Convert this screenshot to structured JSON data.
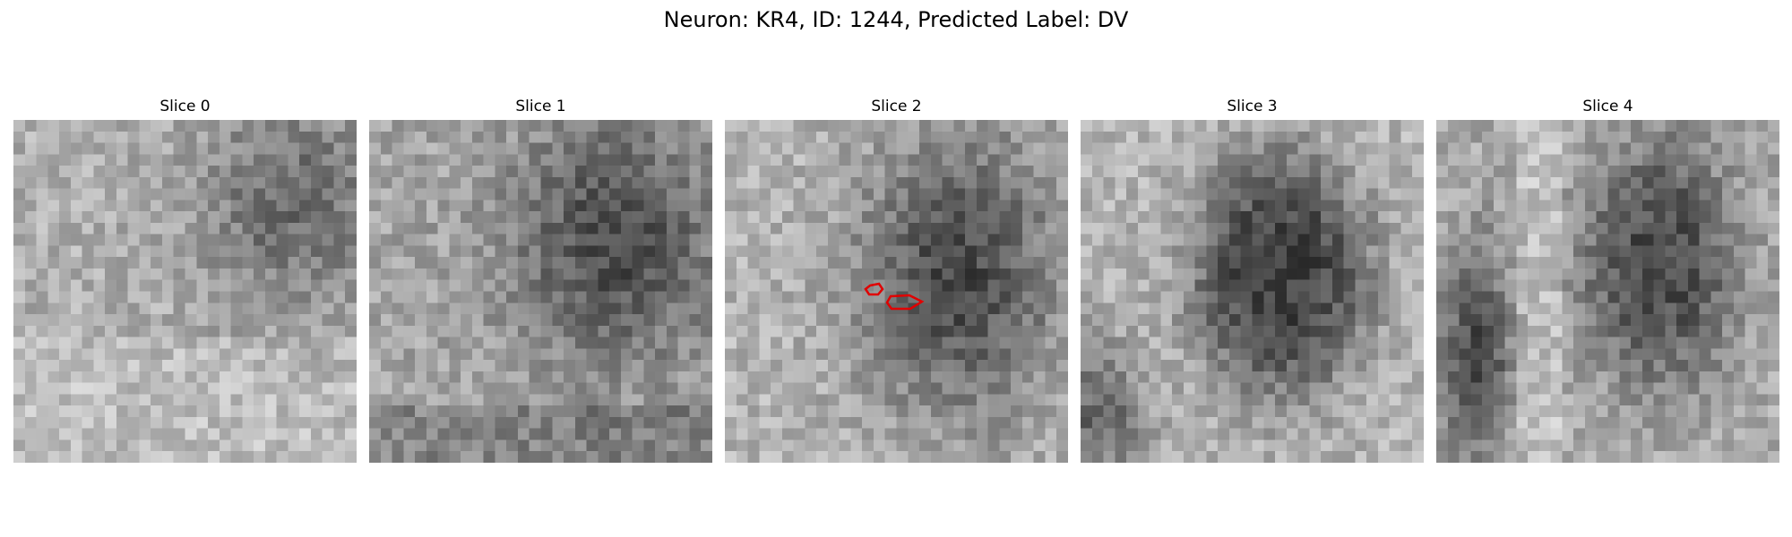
{
  "figure": {
    "title": "Neuron: KR4, ID: 1244, Predicted Label: DV"
  },
  "panels": [
    {
      "title": "Slice 0"
    },
    {
      "title": "Slice 1"
    },
    {
      "title": "Slice 2",
      "has_roi": true
    },
    {
      "title": "Slice 3"
    },
    {
      "title": "Slice 4"
    }
  ],
  "style": {
    "roi_color": "#e00000",
    "colormap": "gray"
  }
}
